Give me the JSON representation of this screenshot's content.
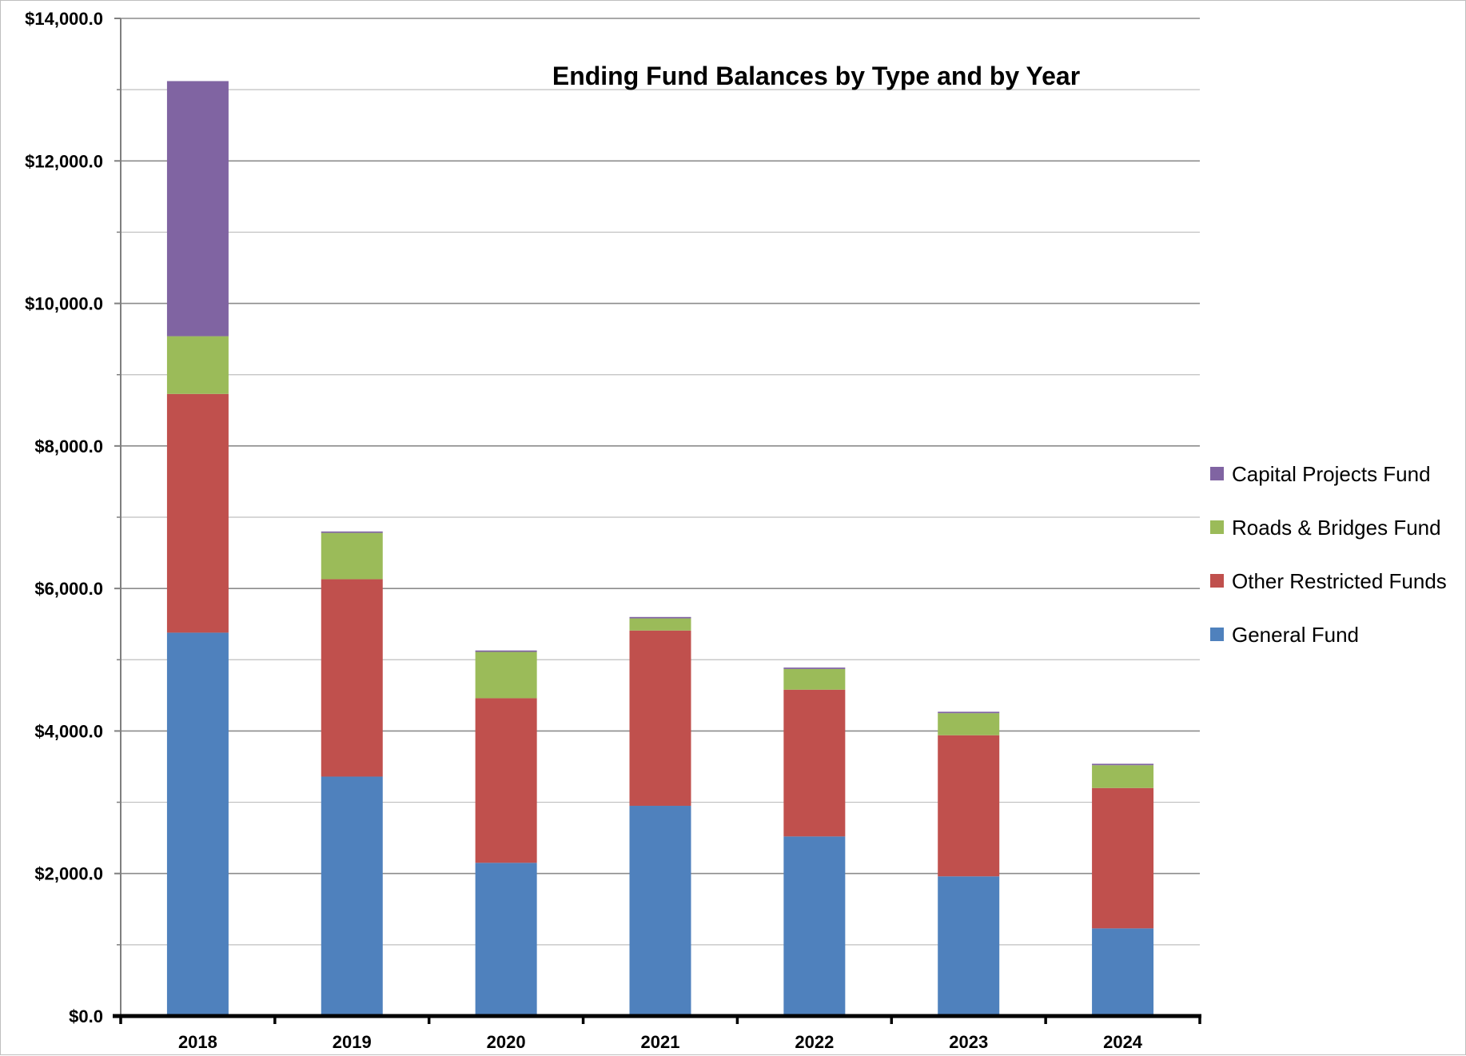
{
  "chart_data": {
    "type": "bar",
    "stacked": true,
    "title": "Ending Fund Balances by Type and by Year",
    "xlabel": "",
    "ylabel": "",
    "ylim": [
      0,
      14000
    ],
    "ytick_values": [
      0,
      2000,
      4000,
      6000,
      8000,
      10000,
      12000,
      14000
    ],
    "ytick_labels": [
      "$0.0",
      "$2,000.0",
      "$4,000.0",
      "$6,000.0",
      "$8,000.0",
      "$10,000.0",
      "$12,000.0",
      "$14,000.0"
    ],
    "minor_gridlines": true,
    "grid": true,
    "legend_position": "right",
    "categories": [
      "2018",
      "2019",
      "2020",
      "2021",
      "2022",
      "2023",
      "2024"
    ],
    "series": [
      {
        "name": "General Fund",
        "color": "#4f81bd",
        "values": [
          5380,
          3360,
          2150,
          2950,
          2520,
          1960,
          1230
        ]
      },
      {
        "name": "Other Restricted Funds",
        "color": "#c0504d",
        "values": [
          3350,
          2770,
          2310,
          2460,
          2060,
          1980,
          1970
        ]
      },
      {
        "name": "Roads & Bridges Fund",
        "color": "#9bbb59",
        "values": [
          810,
          650,
          650,
          170,
          290,
          310,
          320
        ]
      },
      {
        "name": "Capital Projects Fund",
        "color": "#8064a2",
        "values": [
          3580,
          20,
          20,
          20,
          20,
          20,
          20
        ]
      }
    ],
    "legend_order": [
      "Capital Projects Fund",
      "Roads & Bridges Fund",
      "Other Restricted Funds",
      "General Fund"
    ]
  }
}
